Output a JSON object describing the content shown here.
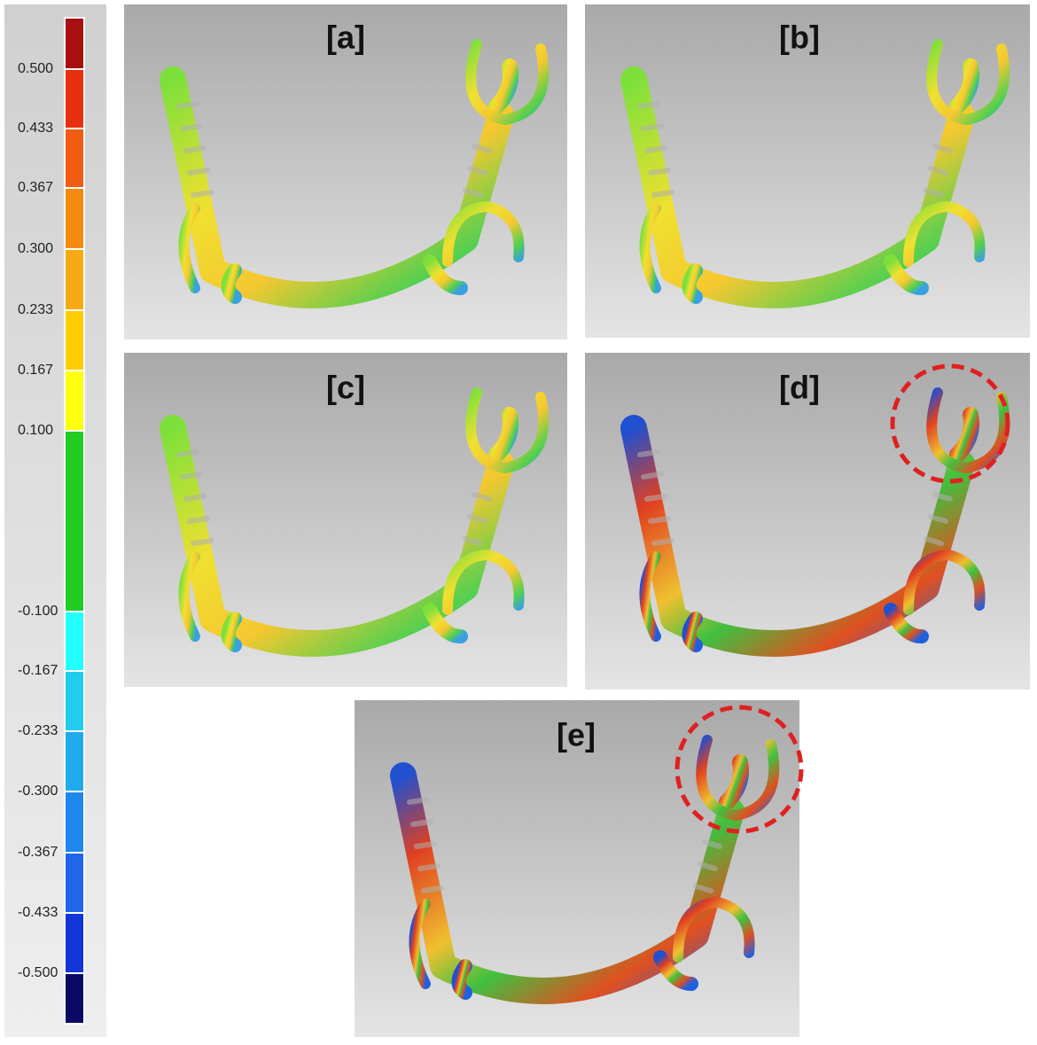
{
  "colorbar": {
    "labels": [
      "0.500",
      "0.433",
      "0.367",
      "0.300",
      "0.233",
      "0.167",
      "0.100",
      "-0.100",
      "-0.167",
      "-0.233",
      "-0.300",
      "-0.367",
      "-0.433",
      "-0.500"
    ]
  },
  "panels": [
    {
      "label": "[a]"
    },
    {
      "label": "[b]"
    },
    {
      "label": "[c]"
    },
    {
      "label": "[d]"
    },
    {
      "label": "[e]"
    }
  ]
}
